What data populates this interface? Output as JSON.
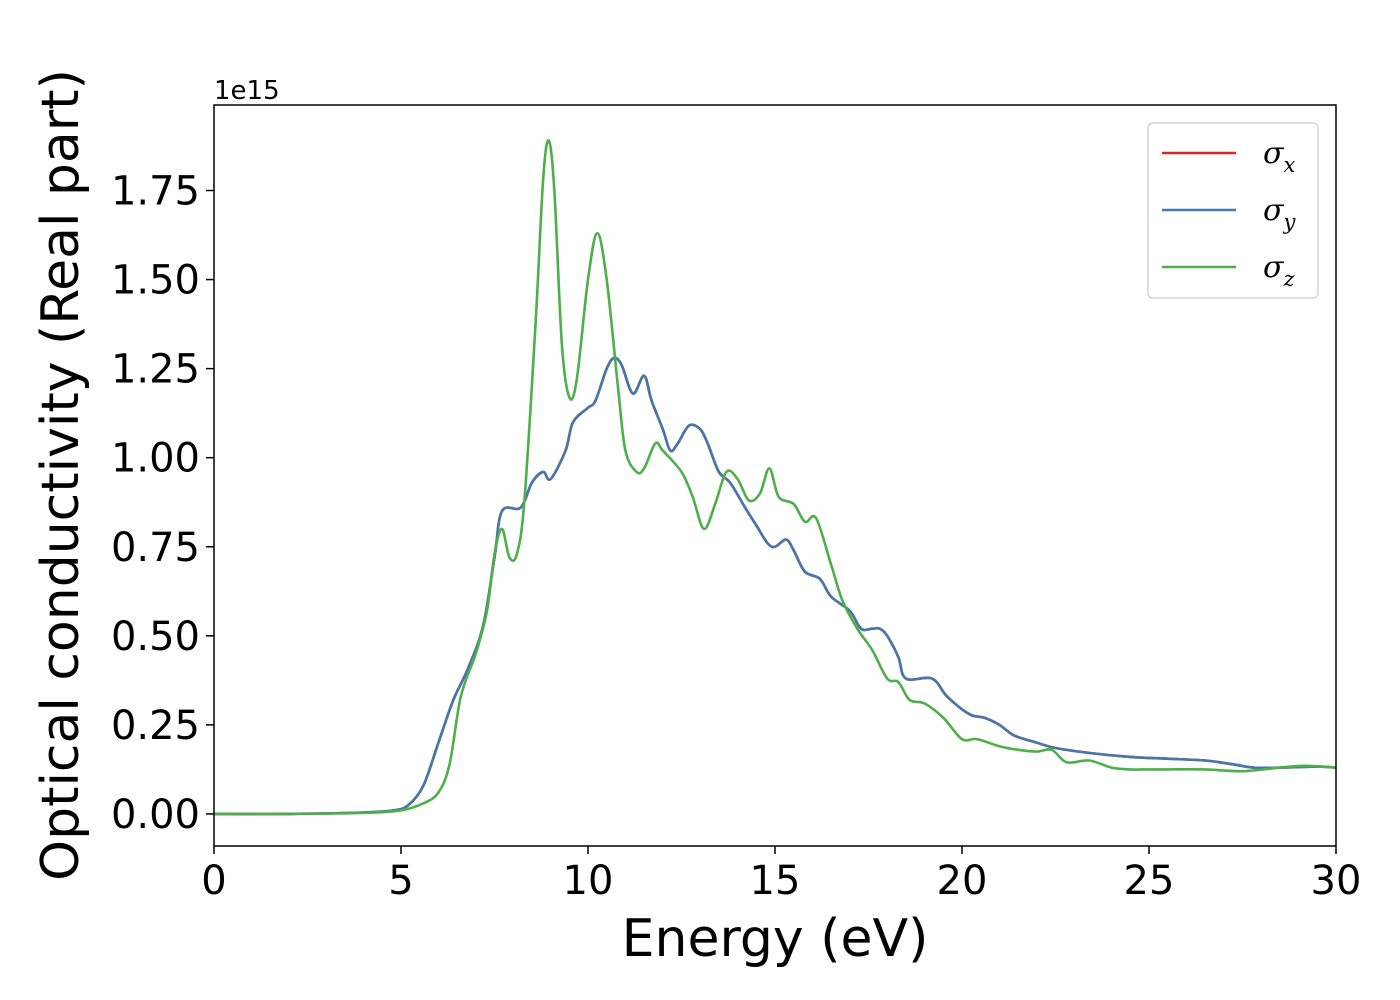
{
  "chart_data": {
    "type": "line",
    "xlabel": "Energy (eV)",
    "ylabel": "Optical conductivity (Real part)",
    "y_offset_label": "1e15",
    "y_scale": 1000000000000000.0,
    "xlim": [
      0,
      30
    ],
    "ylim": [
      -0.09,
      1.99
    ],
    "x_ticks": [
      0,
      5,
      10,
      15,
      20,
      25,
      30
    ],
    "x_tick_labels": [
      "0",
      "5",
      "10",
      "15",
      "20",
      "25",
      "30"
    ],
    "y_ticks": [
      0,
      0.25,
      0.5,
      0.75,
      1.0,
      1.25,
      1.5,
      1.75
    ],
    "y_tick_labels": [
      "0.00",
      "0.25",
      "0.50",
      "0.75",
      "1.00",
      "1.25",
      "1.50",
      "1.75"
    ],
    "grid": false,
    "legend_position": "top-right",
    "series": [
      {
        "name": "σx",
        "legend_base": "σ",
        "legend_sub": "x",
        "color": "#d62728",
        "points": [
          [
            0,
            0
          ],
          [
            2,
            0
          ],
          [
            4,
            0.004
          ],
          [
            4.8,
            0.01
          ],
          [
            5.2,
            0.025
          ],
          [
            5.6,
            0.08
          ],
          [
            6.0,
            0.2
          ],
          [
            6.4,
            0.32
          ],
          [
            6.8,
            0.41
          ],
          [
            7.2,
            0.53
          ],
          [
            7.5,
            0.72
          ],
          [
            7.7,
            0.85
          ],
          [
            8.2,
            0.86
          ],
          [
            8.5,
            0.93
          ],
          [
            8.8,
            0.96
          ],
          [
            9.0,
            0.94
          ],
          [
            9.4,
            1.02
          ],
          [
            9.6,
            1.1
          ],
          [
            10.0,
            1.14
          ],
          [
            10.2,
            1.16
          ],
          [
            10.5,
            1.25
          ],
          [
            10.7,
            1.28
          ],
          [
            10.9,
            1.26
          ],
          [
            11.2,
            1.18
          ],
          [
            11.5,
            1.23
          ],
          [
            11.7,
            1.16
          ],
          [
            12.0,
            1.08
          ],
          [
            12.2,
            1.02
          ],
          [
            12.4,
            1.04
          ],
          [
            12.7,
            1.09
          ],
          [
            13.0,
            1.08
          ],
          [
            13.2,
            1.04
          ],
          [
            13.5,
            0.96
          ],
          [
            13.8,
            0.93
          ],
          [
            14.2,
            0.86
          ],
          [
            14.5,
            0.81
          ],
          [
            14.8,
            0.76
          ],
          [
            15.0,
            0.75
          ],
          [
            15.3,
            0.77
          ],
          [
            15.5,
            0.74
          ],
          [
            15.8,
            0.68
          ],
          [
            16.2,
            0.66
          ],
          [
            16.5,
            0.61
          ],
          [
            17.0,
            0.57
          ],
          [
            17.3,
            0.52
          ],
          [
            17.6,
            0.52
          ],
          [
            17.8,
            0.52
          ],
          [
            18.0,
            0.5
          ],
          [
            18.3,
            0.44
          ],
          [
            18.5,
            0.38
          ],
          [
            19.2,
            0.38
          ],
          [
            19.6,
            0.33
          ],
          [
            20.2,
            0.28
          ],
          [
            20.6,
            0.27
          ],
          [
            21.0,
            0.25
          ],
          [
            21.4,
            0.22
          ],
          [
            22.0,
            0.2
          ],
          [
            22.5,
            0.185
          ],
          [
            23.5,
            0.17
          ],
          [
            24.5,
            0.16
          ],
          [
            25.5,
            0.155
          ],
          [
            26.5,
            0.15
          ],
          [
            27.2,
            0.14
          ],
          [
            27.8,
            0.13
          ],
          [
            28.5,
            0.13
          ],
          [
            29.5,
            0.133
          ],
          [
            30,
            0.13
          ]
        ]
      },
      {
        "name": "σy",
        "legend_base": "σ",
        "legend_sub": "y",
        "color": "#4477aa",
        "points": [
          [
            0,
            0
          ],
          [
            2,
            0
          ],
          [
            4,
            0.004
          ],
          [
            4.8,
            0.01
          ],
          [
            5.2,
            0.025
          ],
          [
            5.6,
            0.08
          ],
          [
            6.0,
            0.2
          ],
          [
            6.4,
            0.32
          ],
          [
            6.8,
            0.41
          ],
          [
            7.2,
            0.53
          ],
          [
            7.5,
            0.72
          ],
          [
            7.7,
            0.85
          ],
          [
            8.2,
            0.86
          ],
          [
            8.5,
            0.93
          ],
          [
            8.8,
            0.96
          ],
          [
            9.0,
            0.94
          ],
          [
            9.4,
            1.02
          ],
          [
            9.6,
            1.1
          ],
          [
            10.0,
            1.14
          ],
          [
            10.2,
            1.16
          ],
          [
            10.5,
            1.25
          ],
          [
            10.7,
            1.28
          ],
          [
            10.9,
            1.26
          ],
          [
            11.2,
            1.18
          ],
          [
            11.5,
            1.23
          ],
          [
            11.7,
            1.16
          ],
          [
            12.0,
            1.08
          ],
          [
            12.2,
            1.02
          ],
          [
            12.4,
            1.04
          ],
          [
            12.7,
            1.09
          ],
          [
            13.0,
            1.08
          ],
          [
            13.2,
            1.04
          ],
          [
            13.5,
            0.96
          ],
          [
            13.8,
            0.93
          ],
          [
            14.2,
            0.86
          ],
          [
            14.5,
            0.81
          ],
          [
            14.8,
            0.76
          ],
          [
            15.0,
            0.75
          ],
          [
            15.3,
            0.77
          ],
          [
            15.5,
            0.74
          ],
          [
            15.8,
            0.68
          ],
          [
            16.2,
            0.66
          ],
          [
            16.5,
            0.61
          ],
          [
            17.0,
            0.57
          ],
          [
            17.3,
            0.52
          ],
          [
            17.6,
            0.52
          ],
          [
            17.8,
            0.52
          ],
          [
            18.0,
            0.5
          ],
          [
            18.3,
            0.44
          ],
          [
            18.5,
            0.38
          ],
          [
            19.2,
            0.38
          ],
          [
            19.6,
            0.33
          ],
          [
            20.2,
            0.28
          ],
          [
            20.6,
            0.27
          ],
          [
            21.0,
            0.25
          ],
          [
            21.4,
            0.22
          ],
          [
            22.0,
            0.2
          ],
          [
            22.5,
            0.185
          ],
          [
            23.5,
            0.17
          ],
          [
            24.5,
            0.16
          ],
          [
            25.5,
            0.155
          ],
          [
            26.5,
            0.15
          ],
          [
            27.2,
            0.14
          ],
          [
            27.8,
            0.13
          ],
          [
            28.5,
            0.13
          ],
          [
            29.5,
            0.133
          ],
          [
            30,
            0.13
          ]
        ]
      },
      {
        "name": "σz",
        "legend_base": "σ",
        "legend_sub": "z",
        "color": "#4daf4a",
        "points": [
          [
            0,
            0
          ],
          [
            2,
            0
          ],
          [
            4,
            0.003
          ],
          [
            5,
            0.01
          ],
          [
            5.6,
            0.03
          ],
          [
            6.0,
            0.06
          ],
          [
            6.3,
            0.14
          ],
          [
            6.6,
            0.33
          ],
          [
            7.0,
            0.45
          ],
          [
            7.3,
            0.57
          ],
          [
            7.5,
            0.73
          ],
          [
            7.7,
            0.8
          ],
          [
            7.9,
            0.72
          ],
          [
            8.1,
            0.73
          ],
          [
            8.3,
            0.88
          ],
          [
            8.6,
            1.38
          ],
          [
            8.8,
            1.78
          ],
          [
            8.95,
            1.89
          ],
          [
            9.1,
            1.75
          ],
          [
            9.3,
            1.32
          ],
          [
            9.5,
            1.17
          ],
          [
            9.7,
            1.22
          ],
          [
            10.0,
            1.5
          ],
          [
            10.25,
            1.63
          ],
          [
            10.5,
            1.5
          ],
          [
            10.8,
            1.2
          ],
          [
            11.0,
            1.02
          ],
          [
            11.3,
            0.96
          ],
          [
            11.5,
            0.97
          ],
          [
            11.8,
            1.04
          ],
          [
            12.0,
            1.02
          ],
          [
            12.5,
            0.96
          ],
          [
            12.8,
            0.89
          ],
          [
            13.1,
            0.8
          ],
          [
            13.4,
            0.87
          ],
          [
            13.7,
            0.96
          ],
          [
            14.0,
            0.94
          ],
          [
            14.3,
            0.88
          ],
          [
            14.6,
            0.9
          ],
          [
            14.85,
            0.97
          ],
          [
            15.1,
            0.89
          ],
          [
            15.5,
            0.87
          ],
          [
            15.8,
            0.82
          ],
          [
            16.1,
            0.83
          ],
          [
            16.5,
            0.7
          ],
          [
            16.8,
            0.6
          ],
          [
            17.2,
            0.52
          ],
          [
            17.6,
            0.46
          ],
          [
            18.0,
            0.38
          ],
          [
            18.3,
            0.37
          ],
          [
            18.6,
            0.32
          ],
          [
            19.0,
            0.31
          ],
          [
            19.5,
            0.27
          ],
          [
            20.0,
            0.21
          ],
          [
            20.4,
            0.21
          ],
          [
            21.0,
            0.19
          ],
          [
            21.5,
            0.18
          ],
          [
            22.0,
            0.175
          ],
          [
            22.4,
            0.18
          ],
          [
            22.8,
            0.145
          ],
          [
            23.4,
            0.15
          ],
          [
            24.0,
            0.13
          ],
          [
            24.5,
            0.125
          ],
          [
            25.0,
            0.125
          ],
          [
            25.5,
            0.125
          ],
          [
            26.5,
            0.125
          ],
          [
            27.5,
            0.12
          ],
          [
            28.5,
            0.13
          ],
          [
            29.2,
            0.135
          ],
          [
            30,
            0.13
          ]
        ]
      }
    ]
  }
}
